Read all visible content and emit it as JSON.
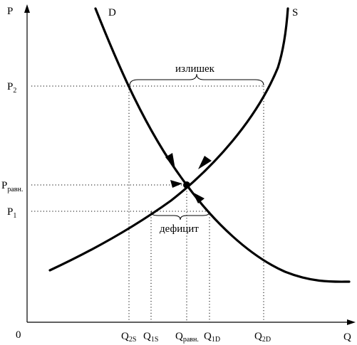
{
  "axes": {
    "y_label": "P",
    "x_label": "Q",
    "origin_label": "0"
  },
  "curves": {
    "demand_label": "D",
    "supply_label": "S"
  },
  "price_levels": [
    {
      "main": "P",
      "sub": "2"
    },
    {
      "main": "P",
      "sub": "равн."
    },
    {
      "main": "P",
      "sub": "1"
    }
  ],
  "quantity_levels": [
    {
      "main": "Q",
      "sub": "2S"
    },
    {
      "main": "Q",
      "sub": "1S"
    },
    {
      "main": "Q",
      "sub": "равн."
    },
    {
      "main": "Q",
      "sub": "1D"
    },
    {
      "main": "Q",
      "sub": "2D"
    }
  ],
  "annotations": {
    "surplus": "излишек",
    "deficit": "дефицит"
  }
}
